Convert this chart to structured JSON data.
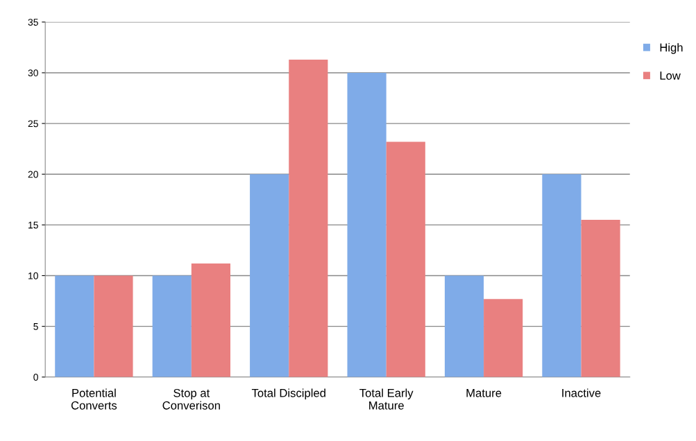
{
  "chart_data": {
    "type": "bar",
    "categories": [
      "Potential\nConverts",
      "Stop at\nConverison",
      "Total Discipled",
      "Total Early\nMature",
      "Mature",
      "Inactive"
    ],
    "series": [
      {
        "name": "High",
        "color": "#7fabe8",
        "values": [
          10,
          10,
          20,
          30,
          10,
          20
        ]
      },
      {
        "name": "Low",
        "color": "#e98080",
        "values": [
          10,
          11.2,
          31.3,
          23.2,
          7.7,
          15.5
        ]
      }
    ],
    "ylim": [
      0,
      35
    ],
    "yticks": [
      0,
      5,
      10,
      15,
      20,
      25,
      30,
      35
    ],
    "grid": "y",
    "legend": "top right"
  }
}
